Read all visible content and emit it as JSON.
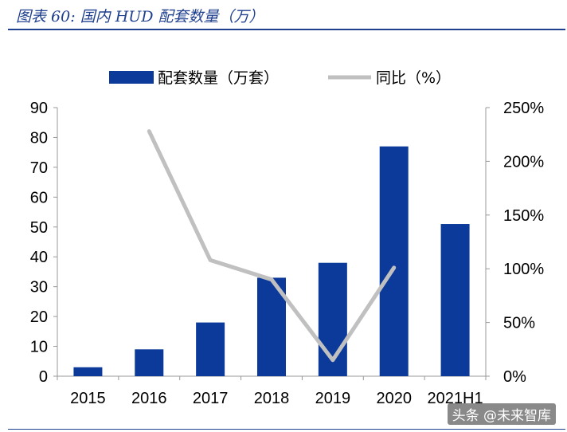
{
  "header": {
    "title": "图表 60:  国内 HUD 配套数量（万）"
  },
  "watermark": "头条 @未来智库",
  "colors": {
    "bar": "#0b3a9a",
    "line": "#c0c0c0",
    "title": "#1f3f8f"
  },
  "chart_data": {
    "type": "bar+line",
    "categories": [
      "2015",
      "2016",
      "2017",
      "2018",
      "2019",
      "2020",
      "2021H1"
    ],
    "series": [
      {
        "name": "配套数量（万套）",
        "type": "bar",
        "axis": "left",
        "values": [
          3,
          9,
          18,
          33,
          38,
          77,
          51
        ]
      },
      {
        "name": "同比（%）",
        "type": "line",
        "axis": "right",
        "values": [
          null,
          228,
          108,
          90,
          15,
          101,
          null
        ]
      }
    ],
    "yleft": {
      "lim": [
        0,
        90
      ],
      "ticks": [
        "0",
        "10",
        "20",
        "30",
        "40",
        "50",
        "60",
        "70",
        "80",
        "90"
      ]
    },
    "yright": {
      "lim": [
        0,
        250
      ],
      "ticks": [
        "0%",
        "50%",
        "100%",
        "150%",
        "200%",
        "250%"
      ]
    },
    "legend": {
      "position": "top"
    },
    "grid": false
  }
}
